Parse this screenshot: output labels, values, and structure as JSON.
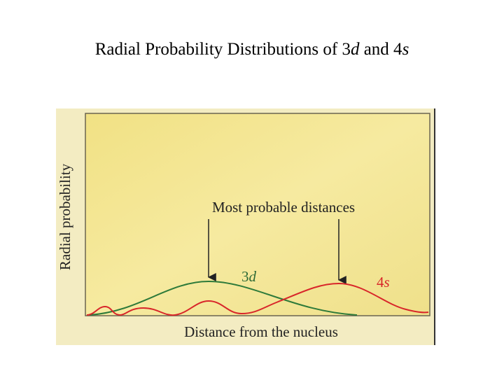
{
  "header": {
    "title_parts": [
      "Radial Probability Distributions of 3",
      "d",
      " and 4",
      "s"
    ]
  },
  "figure": {
    "y_axis_label": "Radial probability",
    "x_axis_label": "Distance from the nucleus",
    "annotation": "Most probable distances",
    "curves": [
      {
        "number": "3",
        "letter": "d"
      },
      {
        "number": "4",
        "letter": "s"
      }
    ]
  }
}
